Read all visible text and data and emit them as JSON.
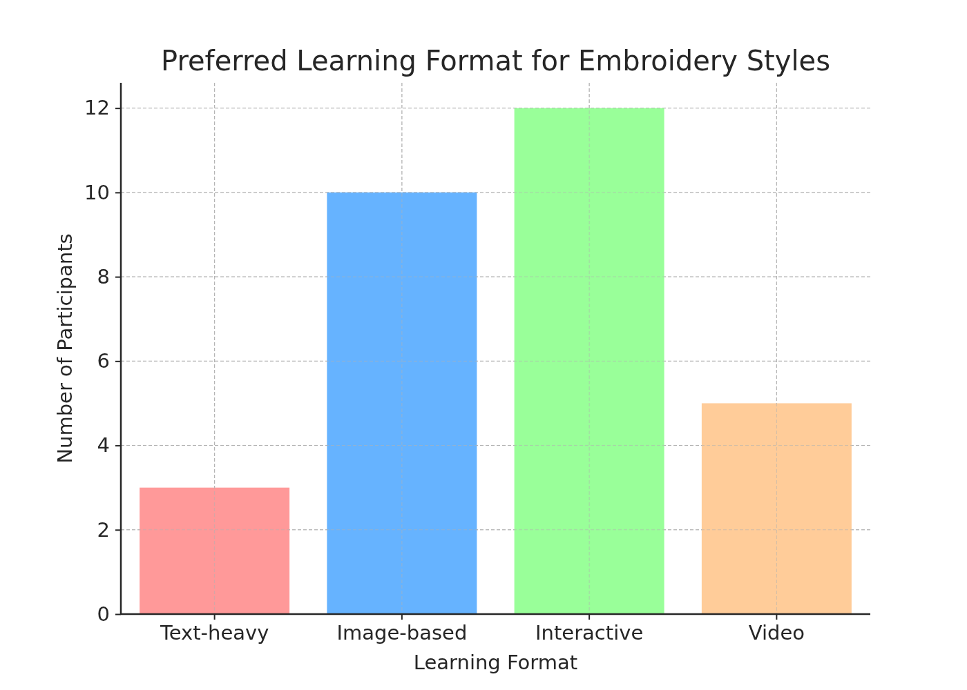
{
  "chart_data": {
    "type": "bar",
    "title": "Preferred Learning Format for Embroidery Styles",
    "xlabel": "Learning Format",
    "ylabel": "Number of Participants",
    "categories": [
      "Text-heavy",
      "Image-based",
      "Interactive",
      "Video"
    ],
    "values": [
      3,
      10,
      12,
      5
    ],
    "colors": [
      "#ff9999",
      "#66b3ff",
      "#99ff99",
      "#ffcc99"
    ],
    "ylim": [
      0,
      12.6
    ],
    "yticks": [
      0,
      2,
      4,
      6,
      8,
      10,
      12
    ],
    "grid": true
  }
}
